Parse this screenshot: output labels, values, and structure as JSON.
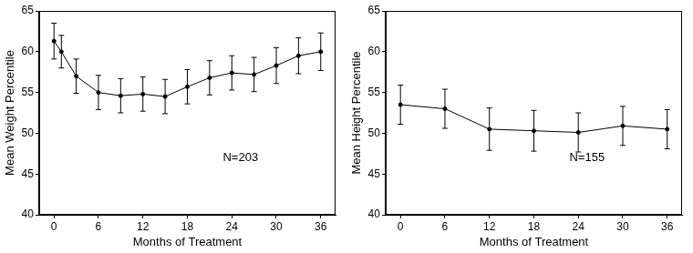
{
  "chart_data": [
    {
      "type": "line",
      "x": [
        0,
        1,
        3,
        6,
        9,
        12,
        15,
        18,
        21,
        24,
        27,
        30,
        33,
        36
      ],
      "values": [
        61.3,
        60.0,
        57.0,
        55.0,
        54.6,
        54.8,
        54.5,
        55.7,
        56.8,
        57.4,
        57.2,
        58.3,
        59.5,
        60.0
      ],
      "errors": [
        2.2,
        2.0,
        2.1,
        2.1,
        2.1,
        2.1,
        2.1,
        2.1,
        2.1,
        2.1,
        2.1,
        2.2,
        2.2,
        2.3
      ],
      "xlim": [
        -2,
        38
      ],
      "xticks": [
        0,
        6,
        12,
        18,
        24,
        30,
        36
      ],
      "ylim": [
        40,
        65
      ],
      "yticks": [
        40,
        45,
        50,
        55,
        60,
        65
      ],
      "x_label": "Months of Treatment",
      "y_label": "Mean Weight Percentile",
      "annotation": "N=203",
      "color": "#000000",
      "marker": "circle",
      "line_style": "solid",
      "grid": false
    },
    {
      "type": "line",
      "x": [
        0,
        6,
        12,
        18,
        24,
        30,
        36
      ],
      "values": [
        53.5,
        53.0,
        50.5,
        50.3,
        50.1,
        50.9,
        50.5
      ],
      "errors": [
        2.4,
        2.4,
        2.6,
        2.5,
        2.4,
        2.4,
        2.4
      ],
      "xlim": [
        -2,
        38
      ],
      "xticks": [
        0,
        6,
        12,
        18,
        24,
        30,
        36
      ],
      "ylim": [
        40,
        65
      ],
      "yticks": [
        40,
        45,
        50,
        55,
        60,
        65
      ],
      "x_label": "Months of Treatment",
      "y_label": "Mean Height Percentile",
      "annotation": "N=155",
      "color": "#000000",
      "marker": "circle",
      "line_style": "solid",
      "grid": false
    }
  ]
}
